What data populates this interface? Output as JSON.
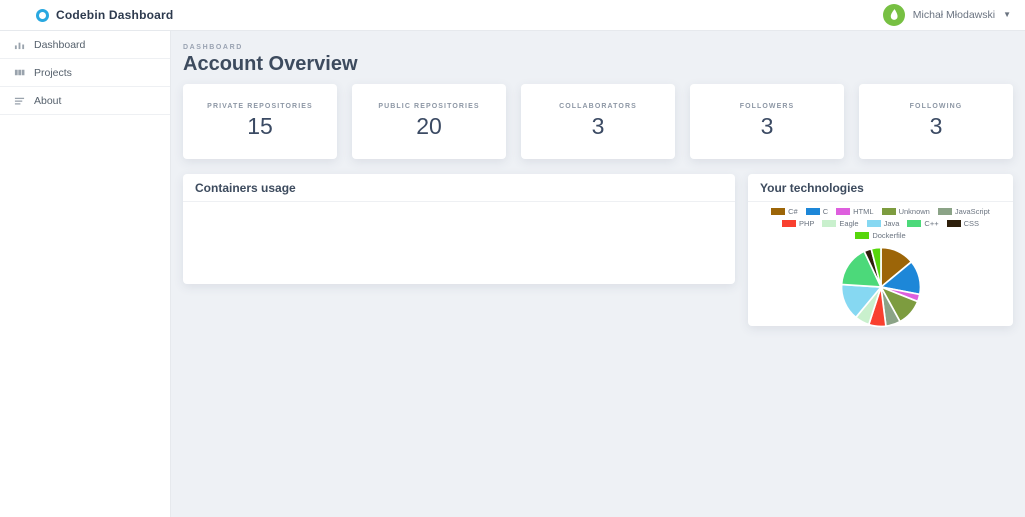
{
  "navbar": {
    "brand": "Codebin Dashboard",
    "accent_color": "#29a8e0",
    "user": {
      "name": "Michał Młodawski",
      "avatar_color": "#77c043"
    }
  },
  "sidebar": {
    "items": [
      {
        "label": "Dashboard",
        "icon": "bar-chart-icon"
      },
      {
        "label": "Projects",
        "icon": "grid-icon"
      },
      {
        "label": "About",
        "icon": "lines-icon"
      }
    ]
  },
  "main": {
    "eyebrow": "DASHBOARD",
    "title": "Account Overview",
    "stats": [
      {
        "label": "PRIVATE REPOSITORIES",
        "value": "15"
      },
      {
        "label": "PUBLIC REPOSITORIES",
        "value": "20"
      },
      {
        "label": "COLLABORATORS",
        "value": "3"
      },
      {
        "label": "FOLLOWERS",
        "value": "3"
      },
      {
        "label": "FOLLOWING",
        "value": "3"
      }
    ],
    "containers_card": {
      "title": "Containers usage"
    },
    "technologies_card": {
      "title": "Your technologies"
    }
  },
  "chart_data": {
    "type": "pie",
    "title": "Your technologies",
    "categories": [
      "C#",
      "C",
      "HTML",
      "Unknown",
      "JavaScript",
      "PHP",
      "Eagle",
      "Java",
      "C++",
      "CSS",
      "Dockerfile"
    ],
    "values": [
      14,
      14,
      3,
      11,
      6,
      7,
      6,
      15,
      17,
      3,
      4
    ],
    "unit": "percent",
    "colors": [
      "#9c6508",
      "#1d87d8",
      "#de5fde",
      "#7d9c3f",
      "#8ba387",
      "#f9402f",
      "#c9f0cd",
      "#86d8f2",
      "#4cd97a",
      "#2e1f0b",
      "#56d60b"
    ],
    "legend_position": "top",
    "start_angle_deg": 0,
    "direction": "clockwise"
  }
}
